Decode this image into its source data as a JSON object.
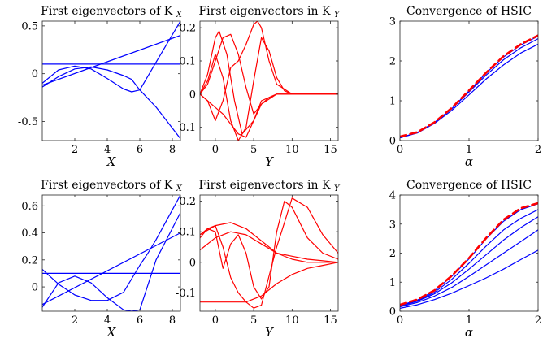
{
  "chart_data": [
    {
      "type": "line",
      "title": "First eigenvectors of K",
      "title_subscript": "X",
      "xlabel": "X",
      "xlim": [
        0,
        8.5
      ],
      "ylim": [
        -0.7,
        0.55
      ],
      "xticks": [
        2,
        4,
        6,
        8
      ],
      "yticks": [
        -0.5,
        0,
        0.5
      ],
      "xtick_labels": [
        "2",
        "4",
        "6",
        "8"
      ],
      "ytick_labels": [
        "-0.5",
        "0",
        "0.5"
      ],
      "color": "#0000ff",
      "series": [
        {
          "x": [
            0,
            8.5
          ],
          "y": [
            0.1,
            0.1
          ]
        },
        {
          "x": [
            0,
            8.5
          ],
          "y": [
            -0.12,
            0.4
          ]
        },
        {
          "x": [
            0,
            1,
            2,
            3,
            4,
            5,
            5.5,
            6,
            7,
            8.5
          ],
          "y": [
            -0.14,
            -0.03,
            0.05,
            0.07,
            0.04,
            -0.02,
            -0.06,
            -0.17,
            -0.35,
            -0.68
          ]
        },
        {
          "x": [
            0,
            1,
            2,
            3,
            4,
            5,
            5.5,
            6,
            7,
            8.5
          ],
          "y": [
            -0.1,
            0.04,
            0.08,
            0.05,
            -0.05,
            -0.16,
            -0.19,
            -0.17,
            0.12,
            0.55
          ]
        }
      ]
    },
    {
      "type": "line",
      "title": "First eigenvectors in K",
      "title_subscript": "Y",
      "xlabel": "Y",
      "xlim": [
        -2,
        16
      ],
      "ylim": [
        -0.14,
        0.22
      ],
      "xticks": [
        0,
        5,
        10,
        15
      ],
      "yticks": [
        -0.1,
        0,
        0.1,
        0.2
      ],
      "xtick_labels": [
        "0",
        "5",
        "10",
        "15"
      ],
      "ytick_labels": [
        "-0.1",
        "0",
        "0.1",
        "0.2"
      ],
      "color": "#ff0000",
      "series": [
        {
          "x": [
            -2,
            -1,
            0,
            0.5,
            1.5,
            2.5,
            3.5,
            5,
            6,
            8,
            10,
            16
          ],
          "y": [
            0,
            0.06,
            0.17,
            0.19,
            0.12,
            -0.02,
            -0.12,
            -0.08,
            -0.02,
            0,
            0,
            0
          ]
        },
        {
          "x": [
            -2,
            -1,
            0,
            1,
            2,
            3,
            4,
            5,
            6,
            8,
            10,
            16
          ],
          "y": [
            0,
            0.03,
            0.1,
            0.17,
            0.18,
            0.12,
            0.02,
            -0.06,
            -0.03,
            0,
            0,
            0
          ]
        },
        {
          "x": [
            -2,
            -1,
            0,
            1,
            2,
            3,
            4,
            5,
            5.5,
            6,
            7,
            8,
            10,
            16
          ],
          "y": [
            0,
            -0.02,
            -0.08,
            -0.02,
            0.08,
            0.1,
            0.15,
            0.21,
            0.22,
            0.2,
            0.1,
            0.03,
            0,
            0
          ]
        },
        {
          "x": [
            -2,
            -1,
            0,
            1,
            2,
            3,
            4,
            5,
            6,
            7,
            8,
            9,
            10,
            16
          ],
          "y": [
            0,
            0.04,
            0.12,
            0.05,
            -0.08,
            -0.14,
            -0.1,
            0.04,
            0.17,
            0.13,
            0.05,
            0.01,
            0,
            0
          ]
        },
        {
          "x": [
            -2,
            -1,
            0,
            1,
            2,
            3,
            4,
            5,
            6,
            7,
            8,
            9,
            10,
            16
          ],
          "y": [
            0,
            -0.02,
            -0.04,
            -0.06,
            -0.09,
            -0.12,
            -0.13,
            -0.08,
            -0.03,
            -0.01,
            0,
            0,
            0,
            0
          ]
        }
      ]
    },
    {
      "type": "line",
      "title": "Convergence of HSIC",
      "xlabel": "α",
      "xlim": [
        0,
        2
      ],
      "ylim": [
        0,
        3
      ],
      "xticks": [
        0,
        1,
        2
      ],
      "yticks": [
        0,
        1,
        2,
        3
      ],
      "xtick_labels": [
        "0",
        "1",
        "2"
      ],
      "ytick_labels": [
        "0",
        "1",
        "2",
        "3"
      ],
      "series": [
        {
          "color": "#0000ff",
          "x": [
            0,
            0.25,
            0.5,
            0.75,
            1,
            1.25,
            1.5,
            1.75,
            2
          ],
          "y": [
            0.07,
            0.2,
            0.45,
            0.8,
            1.25,
            1.7,
            2.1,
            2.4,
            2.62
          ]
        },
        {
          "color": "#0000ff",
          "x": [
            0,
            0.25,
            0.5,
            0.75,
            1,
            1.25,
            1.5,
            1.75,
            2
          ],
          "y": [
            0.07,
            0.2,
            0.45,
            0.8,
            1.22,
            1.65,
            2.03,
            2.33,
            2.56
          ]
        },
        {
          "color": "#0000ff",
          "x": [
            0,
            0.25,
            0.5,
            0.75,
            1,
            1.25,
            1.5,
            1.75,
            2
          ],
          "y": [
            0.07,
            0.19,
            0.43,
            0.76,
            1.15,
            1.55,
            1.9,
            2.2,
            2.42
          ]
        },
        {
          "color": "#ff0000",
          "dashed": true,
          "x": [
            0,
            0.25,
            0.5,
            0.75,
            1,
            1.25,
            1.5,
            1.75,
            2
          ],
          "y": [
            0.1,
            0.21,
            0.46,
            0.82,
            1.26,
            1.71,
            2.12,
            2.42,
            2.64
          ]
        }
      ]
    },
    {
      "type": "line",
      "title": "First eigenvectors of K",
      "title_subscript": "X",
      "xlabel": "X",
      "xlim": [
        0,
        8.5
      ],
      "ylim": [
        -0.18,
        0.68
      ],
      "xticks": [
        2,
        4,
        6,
        8
      ],
      "yticks": [
        0,
        0.2,
        0.4,
        0.6
      ],
      "xtick_labels": [
        "2",
        "4",
        "6",
        "8"
      ],
      "ytick_labels": [
        "0",
        "0.2",
        "0.4",
        "0.6"
      ],
      "color": "#0000ff",
      "series": [
        {
          "x": [
            0,
            8.5
          ],
          "y": [
            0.1,
            0.1
          ]
        },
        {
          "x": [
            0,
            8.5
          ],
          "y": [
            -0.13,
            0.4
          ]
        },
        {
          "x": [
            0,
            1,
            2,
            3,
            4,
            5,
            6,
            6.5,
            7,
            8.5
          ],
          "y": [
            0.13,
            0.02,
            -0.06,
            -0.1,
            -0.1,
            -0.04,
            0.16,
            0.25,
            0.35,
            0.68
          ]
        },
        {
          "x": [
            0,
            1,
            2,
            3,
            4,
            5,
            5.5,
            6,
            7,
            8.5
          ],
          "y": [
            -0.15,
            0.03,
            0.08,
            0.03,
            -0.08,
            -0.17,
            -0.18,
            -0.17,
            0.2,
            0.55
          ]
        }
      ]
    },
    {
      "type": "line",
      "title": "First eigenvectors in K",
      "title_subscript": "Y",
      "xlabel": "Y",
      "xlim": [
        -2,
        16
      ],
      "ylim": [
        -0.16,
        0.22
      ],
      "xticks": [
        0,
        5,
        10,
        15
      ],
      "yticks": [
        -0.1,
        0,
        0.1,
        0.2
      ],
      "xtick_labels": [
        "0",
        "5",
        "10",
        "15"
      ],
      "ytick_labels": [
        "-0.1",
        "0",
        "0.1",
        "0.2"
      ],
      "color": "#ff0000",
      "series": [
        {
          "x": [
            -2,
            0,
            2,
            4,
            6,
            8,
            10,
            12,
            14,
            16
          ],
          "y": [
            0.04,
            0.08,
            0.1,
            0.09,
            0.06,
            0.03,
            0.02,
            0.01,
            0.005,
            0
          ]
        },
        {
          "x": [
            -2,
            0,
            2,
            4,
            6,
            8,
            10,
            12,
            14,
            16
          ],
          "y": [
            0.09,
            0.12,
            0.13,
            0.11,
            0.07,
            0.03,
            0.01,
            0,
            0,
            0
          ]
        },
        {
          "x": [
            -2,
            -1,
            0,
            1,
            2,
            3,
            4,
            5,
            6,
            8,
            9,
            10,
            12,
            14,
            16
          ],
          "y": [
            0.09,
            0.11,
            0.12,
            0.05,
            -0.05,
            -0.1,
            -0.13,
            -0.15,
            -0.14,
            0.05,
            0.13,
            0.21,
            0.18,
            0.09,
            0.03
          ]
        },
        {
          "x": [
            -2,
            -1,
            0,
            1,
            2,
            3,
            4,
            5,
            6,
            7,
            8,
            9,
            10,
            12,
            14,
            16
          ],
          "y": [
            0.08,
            0.11,
            0.1,
            -0.02,
            0.06,
            0.09,
            0.03,
            -0.08,
            -0.12,
            -0.08,
            0.1,
            0.2,
            0.18,
            0.08,
            0.03,
            0.01
          ]
        },
        {
          "x": [
            -2,
            0,
            2,
            4,
            6,
            8,
            10,
            12,
            14,
            16
          ],
          "y": [
            -0.13,
            -0.13,
            -0.13,
            -0.13,
            -0.11,
            -0.07,
            -0.04,
            -0.02,
            -0.01,
            0
          ]
        }
      ]
    },
    {
      "type": "line",
      "title": "Convergence of HSIC",
      "xlabel": "α",
      "xlim": [
        0,
        2
      ],
      "ylim": [
        0,
        4
      ],
      "xticks": [
        0,
        1,
        2
      ],
      "yticks": [
        0,
        1,
        2,
        3,
        4
      ],
      "xtick_labels": [
        "0",
        "1",
        "2"
      ],
      "ytick_labels": [
        "0",
        "1",
        "2",
        "3",
        "4"
      ],
      "series": [
        {
          "color": "#0000ff",
          "x": [
            0,
            0.25,
            0.5,
            0.75,
            1,
            1.25,
            1.5,
            1.75,
            2
          ],
          "y": [
            0.2,
            0.38,
            0.7,
            1.2,
            1.8,
            2.5,
            3.1,
            3.5,
            3.7
          ]
        },
        {
          "color": "#0000ff",
          "x": [
            0,
            0.25,
            0.5,
            0.75,
            1,
            1.25,
            1.5,
            1.75,
            2
          ],
          "y": [
            0.2,
            0.36,
            0.65,
            1.1,
            1.65,
            2.25,
            2.8,
            3.2,
            3.5
          ]
        },
        {
          "color": "#0000ff",
          "x": [
            0,
            0.25,
            0.5,
            0.75,
            1,
            1.25,
            1.5,
            1.75,
            2
          ],
          "y": [
            0.18,
            0.34,
            0.6,
            0.98,
            1.45,
            1.95,
            2.45,
            2.88,
            3.25
          ]
        },
        {
          "color": "#0000ff",
          "x": [
            0,
            0.25,
            0.5,
            0.75,
            1,
            1.25,
            1.5,
            1.75,
            2
          ],
          "y": [
            0.15,
            0.3,
            0.52,
            0.82,
            1.2,
            1.6,
            2.0,
            2.4,
            2.8
          ]
        },
        {
          "color": "#0000ff",
          "x": [
            0,
            0.25,
            0.5,
            0.75,
            1,
            1.25,
            1.5,
            1.75,
            2
          ],
          "y": [
            0.1,
            0.22,
            0.4,
            0.62,
            0.88,
            1.15,
            1.45,
            1.78,
            2.1
          ]
        },
        {
          "color": "#ff0000",
          "dashed": true,
          "x": [
            0,
            0.25,
            0.5,
            0.75,
            1,
            1.25,
            1.5,
            1.75,
            2
          ],
          "y": [
            0.22,
            0.4,
            0.72,
            1.22,
            1.83,
            2.53,
            3.15,
            3.55,
            3.72
          ]
        }
      ]
    }
  ]
}
